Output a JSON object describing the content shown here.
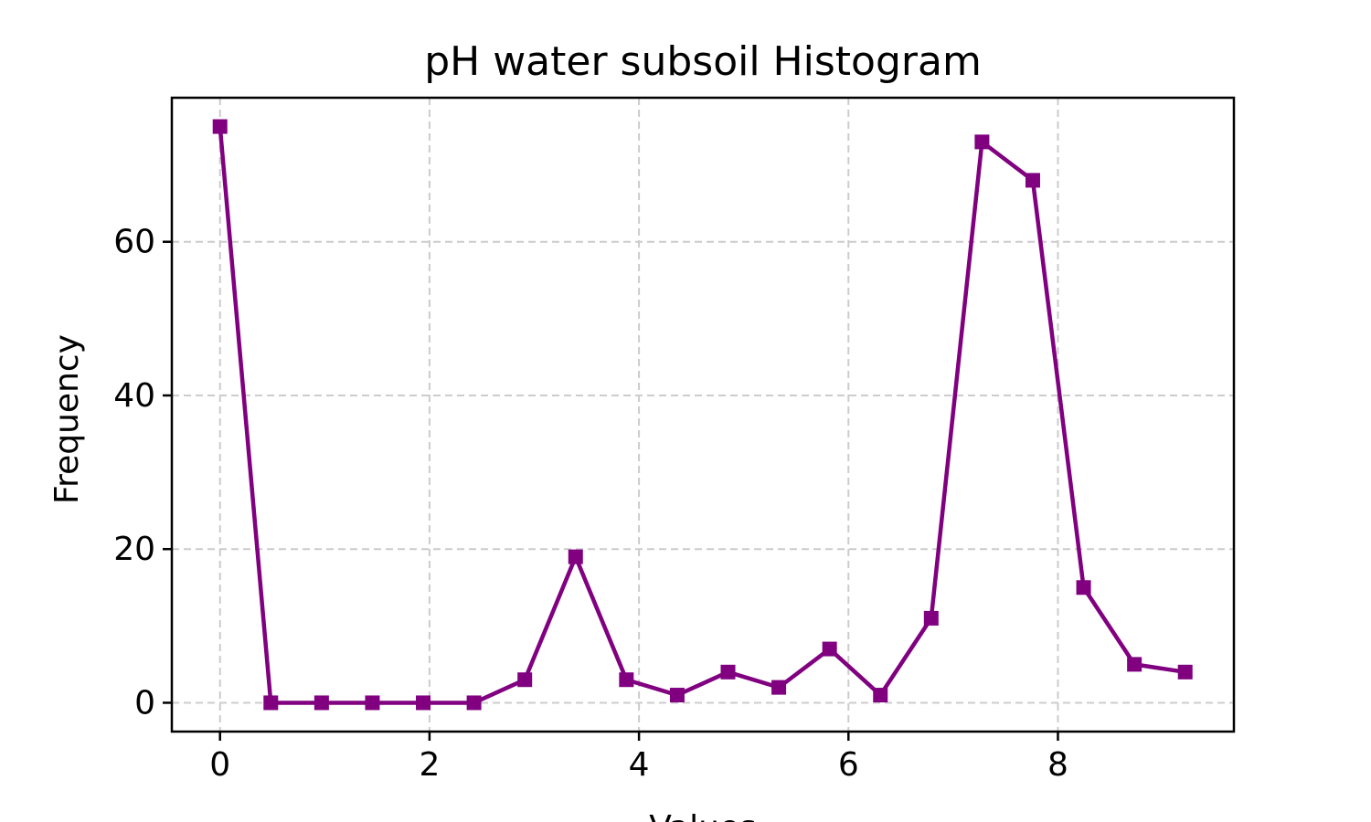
{
  "chart_data": {
    "type": "line",
    "title": "pH water subsoil Histogram",
    "xlabel": "Values",
    "ylabel": "Frequency",
    "x": [
      0,
      0.485,
      0.97,
      1.455,
      1.94,
      2.425,
      2.91,
      3.395,
      3.88,
      4.365,
      4.85,
      5.335,
      5.82,
      6.305,
      6.79,
      7.275,
      7.76,
      8.245,
      8.73,
      9.215
    ],
    "series": [
      {
        "values": [
          75,
          0,
          0,
          0,
          0,
          0,
          3,
          19,
          3,
          1,
          4,
          2,
          7,
          1,
          11,
          73,
          68,
          15,
          5,
          4
        ],
        "color": "#800080",
        "marker": "square"
      }
    ],
    "xlim": [
      -0.46,
      9.68
    ],
    "ylim": [
      -3.75,
      78.75
    ],
    "xticks": [
      0,
      2,
      4,
      6,
      8
    ],
    "yticks": [
      0,
      20,
      40,
      60
    ],
    "xtick_labels": [
      "0",
      "2",
      "4",
      "6",
      "8"
    ],
    "ytick_labels": [
      "0",
      "20",
      "40",
      "60"
    ],
    "grid": true,
    "grid_style": "dashed"
  }
}
